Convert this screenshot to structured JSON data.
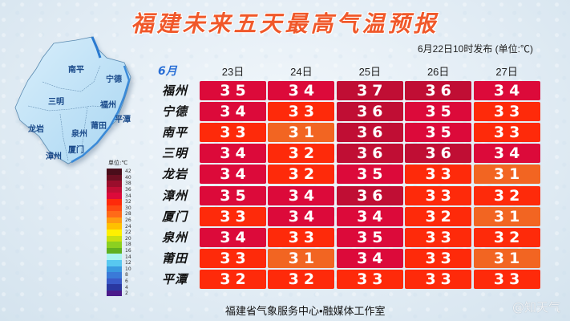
{
  "header": {
    "title": "福建未来五天最高气温预报",
    "publish_info": "6月22日10时发布 (单位:℃)"
  },
  "table": {
    "month_label": "6月",
    "columns": [
      "23日",
      "24日",
      "25日",
      "26日",
      "27日"
    ],
    "rows": [
      {
        "city": "福州",
        "values": [
          35,
          34,
          37,
          36,
          34
        ]
      },
      {
        "city": "宁德",
        "values": [
          34,
          33,
          36,
          35,
          33
        ]
      },
      {
        "city": "南平",
        "values": [
          33,
          31,
          36,
          35,
          33
        ]
      },
      {
        "city": "三明",
        "values": [
          34,
          32,
          36,
          36,
          34
        ]
      },
      {
        "city": "龙岩",
        "values": [
          34,
          32,
          35,
          33,
          31
        ]
      },
      {
        "city": "漳州",
        "values": [
          35,
          34,
          36,
          33,
          32
        ]
      },
      {
        "city": "厦门",
        "values": [
          33,
          34,
          34,
          32,
          31
        ]
      },
      {
        "city": "泉州",
        "values": [
          34,
          33,
          35,
          33,
          32
        ]
      },
      {
        "city": "莆田",
        "values": [
          33,
          31,
          34,
          33,
          31
        ]
      },
      {
        "city": "平潭",
        "values": [
          32,
          32,
          33,
          33,
          33
        ]
      }
    ],
    "cell_colors": {
      "31": "#f26522",
      "32": "#fe2a0a",
      "33": "#fe2a0a",
      "34": "#dc0a3a",
      "35": "#dc0a3a",
      "36": "#c00e34",
      "37": "#c00e34"
    }
  },
  "map": {
    "labels": [
      "南平",
      "宁德",
      "三明",
      "福州",
      "龙岩",
      "泉州",
      "莆田",
      "平潭",
      "漳州",
      "厦门"
    ]
  },
  "legend": {
    "title": "单位:℃",
    "items": [
      {
        "value": "42",
        "color": "#4a0d1a"
      },
      {
        "value": "40",
        "color": "#6e0f22"
      },
      {
        "value": "38",
        "color": "#9a0e2c"
      },
      {
        "value": "36",
        "color": "#c00e34"
      },
      {
        "value": "34",
        "color": "#dc0a3a"
      },
      {
        "value": "32",
        "color": "#fe2a0a"
      },
      {
        "value": "30",
        "color": "#fe4a12"
      },
      {
        "value": "28",
        "color": "#ff6a18"
      },
      {
        "value": "26",
        "color": "#ff9a10"
      },
      {
        "value": "24",
        "color": "#ffc000"
      },
      {
        "value": "22",
        "color": "#fff000"
      },
      {
        "value": "20",
        "color": "#c8e010"
      },
      {
        "value": "18",
        "color": "#8cd020"
      },
      {
        "value": "16",
        "color": "#60b020"
      },
      {
        "value": "14",
        "color": "#a8f4f0"
      },
      {
        "value": "12",
        "color": "#58c8f0"
      },
      {
        "value": "10",
        "color": "#3a9ae0"
      },
      {
        "value": "8",
        "color": "#3a7ad8"
      },
      {
        "value": "6",
        "color": "#3a5ac8"
      },
      {
        "value": "4",
        "color": "#2a38a0"
      },
      {
        "value": "2",
        "color": "#4a1a8a"
      }
    ]
  },
  "footer": {
    "source": "福建省气象服务中心•融媒体工作室",
    "watermark": "@知天气"
  }
}
